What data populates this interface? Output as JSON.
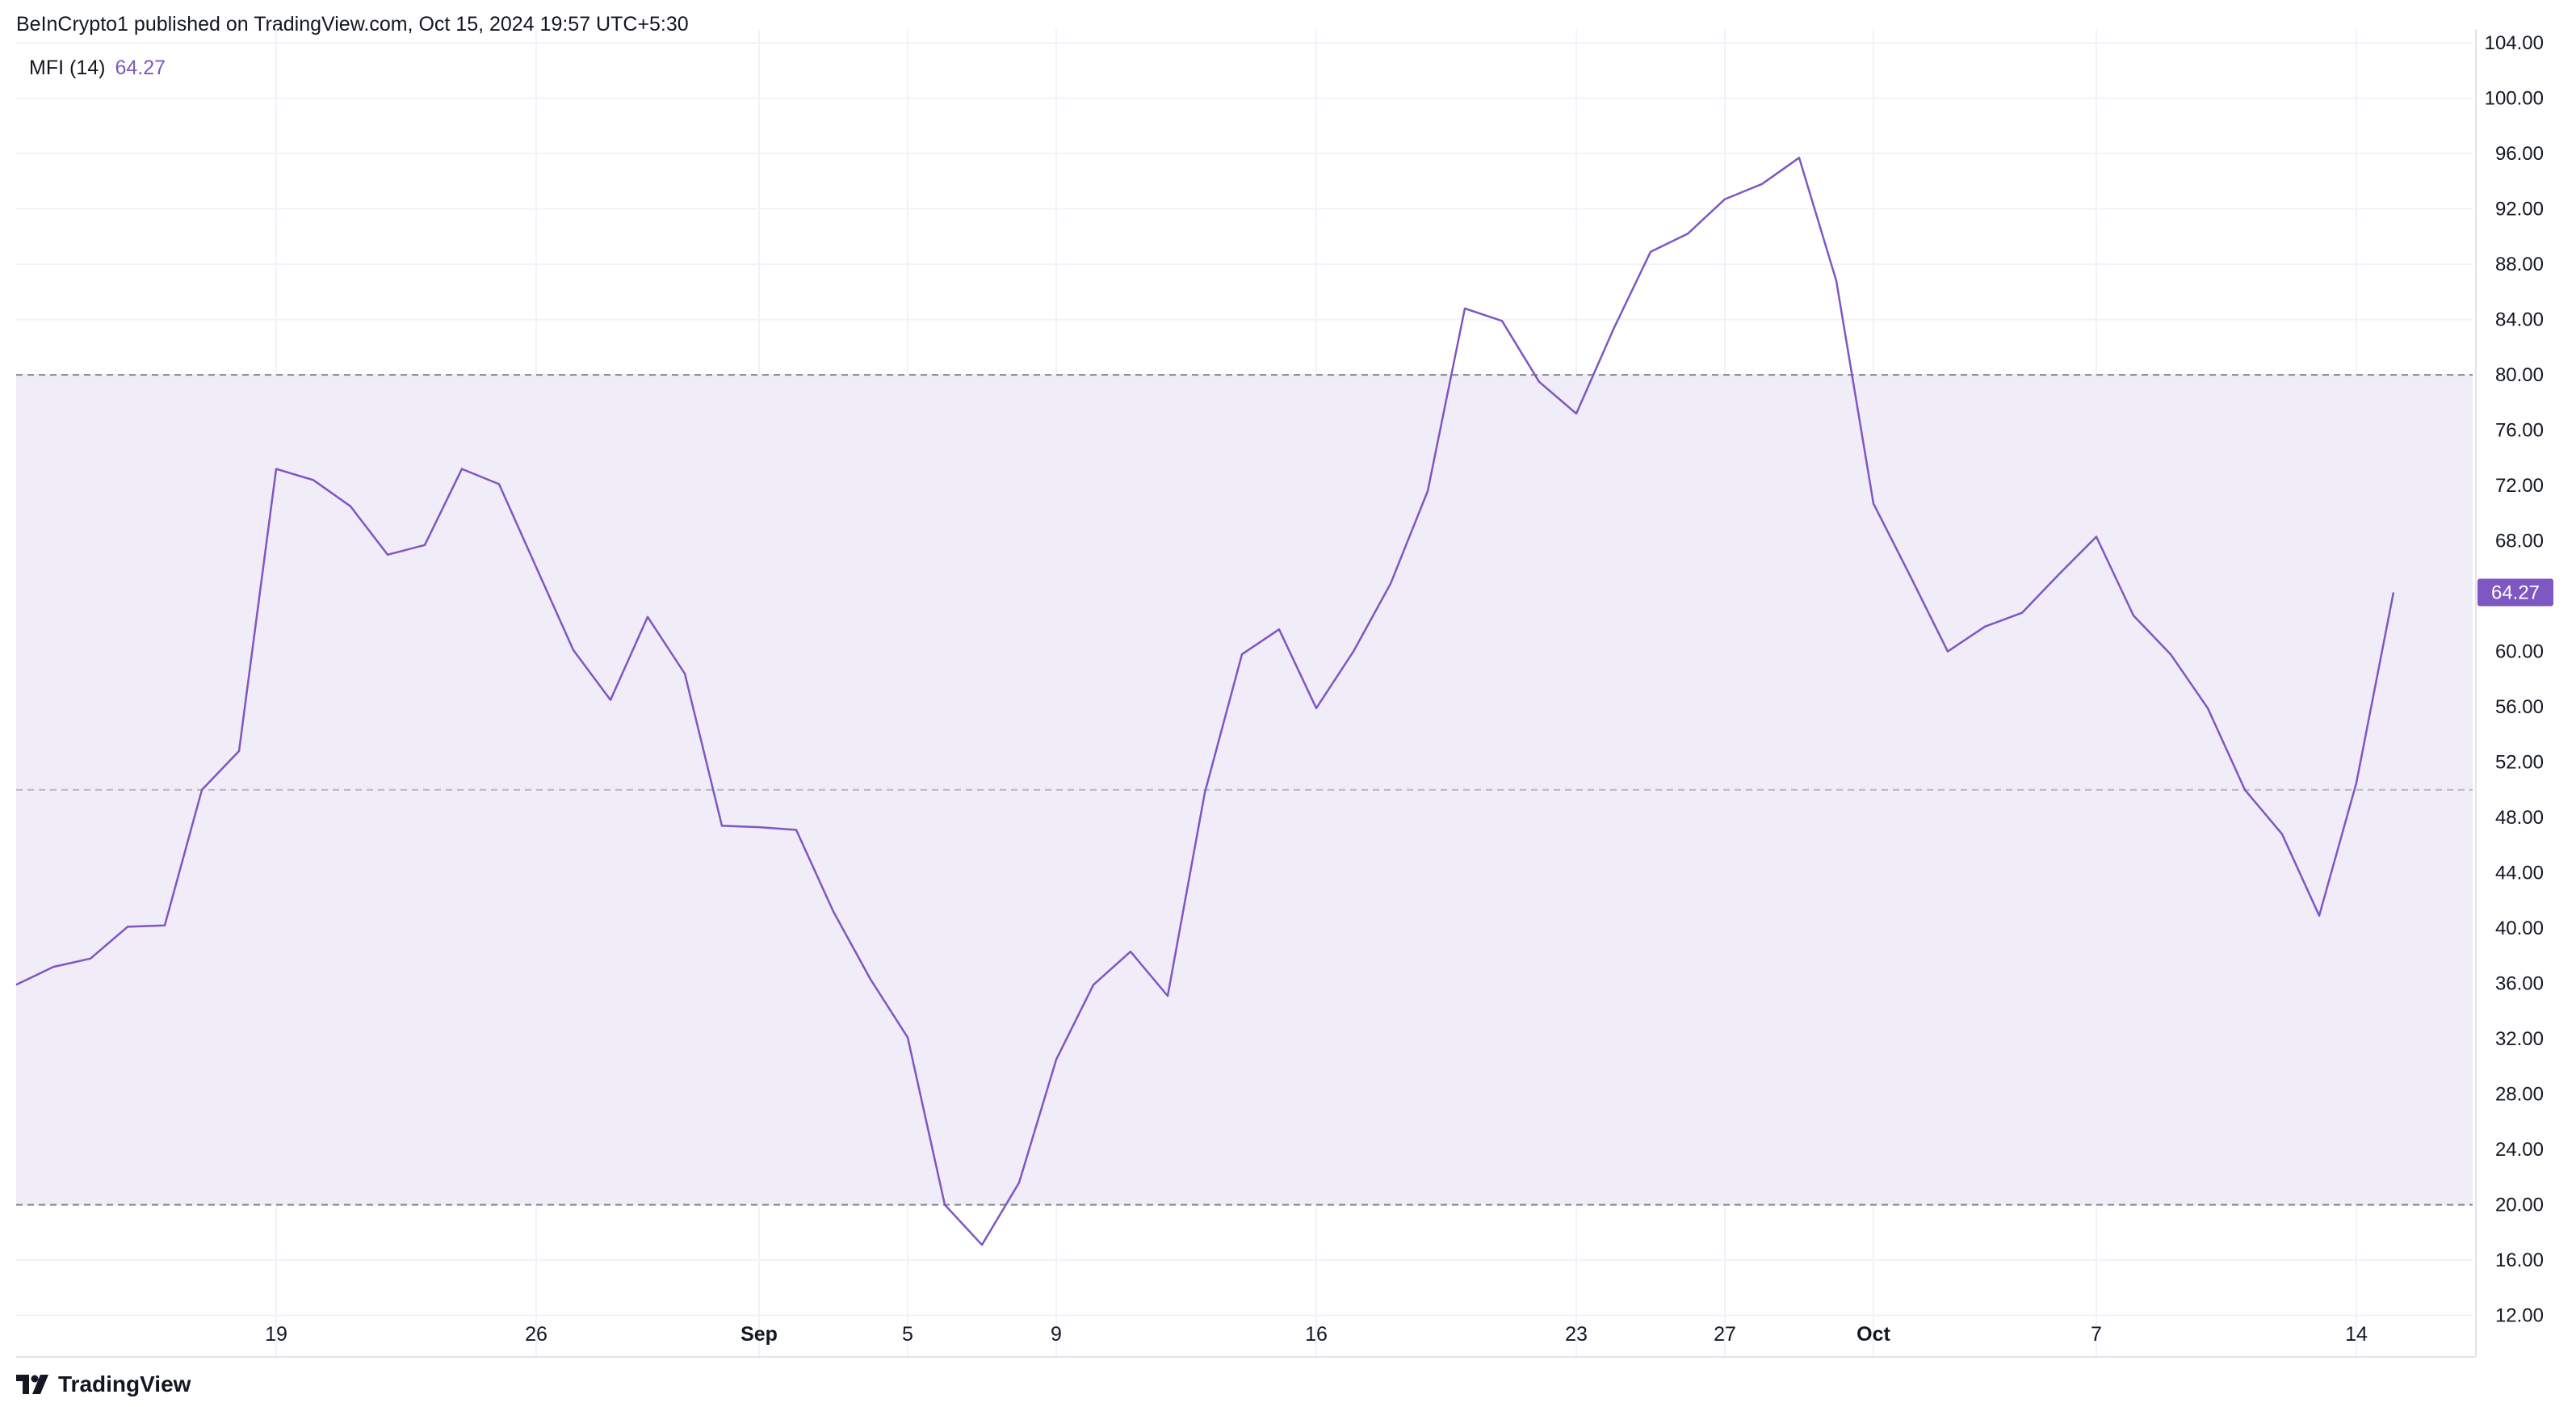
{
  "header": {
    "publisher": "BeInCrypto1 published on TradingView.com, Oct 15, 2024 19:57 UTC+5:30"
  },
  "legend": {
    "name": "MFI (14)",
    "value": "64.27"
  },
  "footer": {
    "brand": "TradingView"
  },
  "colors": {
    "line": "#7e57c2",
    "band_fill": "#f0ecf8",
    "band_lines": "#787b86",
    "grid": "#f0f3fa",
    "price_tag": "#7e57c2"
  },
  "chart_data": {
    "type": "line",
    "title": "",
    "xlabel": "",
    "ylabel": "",
    "ylim": [
      9,
      105
    ],
    "grid": true,
    "y_ticks": [
      "104.00",
      "100.00",
      "96.00",
      "92.00",
      "88.00",
      "84.00",
      "80.00",
      "76.00",
      "72.00",
      "68.00",
      "64.00",
      "60.00",
      "56.00",
      "52.00",
      "48.00",
      "44.00",
      "40.00",
      "36.00",
      "32.00",
      "28.00",
      "24.00",
      "20.00",
      "16.00",
      "12.00"
    ],
    "x_ticks": [
      {
        "label": "19",
        "date": "2024-08-19",
        "major": false
      },
      {
        "label": "26",
        "date": "2024-08-26",
        "major": false
      },
      {
        "label": "Sep",
        "date": "2024-09-01",
        "major": true
      },
      {
        "label": "5",
        "date": "2024-09-05",
        "major": false
      },
      {
        "label": "9",
        "date": "2024-09-09",
        "major": false
      },
      {
        "label": "16",
        "date": "2024-09-16",
        "major": false
      },
      {
        "label": "23",
        "date": "2024-09-23",
        "major": false
      },
      {
        "label": "27",
        "date": "2024-09-27",
        "major": false
      },
      {
        "label": "Oct",
        "date": "2024-10-01",
        "major": true
      },
      {
        "label": "7",
        "date": "2024-10-07",
        "major": false
      },
      {
        "label": "14",
        "date": "2024-10-14",
        "major": false
      }
    ],
    "bands": {
      "upper": 80,
      "middle": 50,
      "lower": 20
    },
    "last_value_label": "64.27",
    "series": [
      {
        "x": [
          "2024-08-12",
          "2024-08-13",
          "2024-08-14",
          "2024-08-15",
          "2024-08-16",
          "2024-08-17",
          "2024-08-18",
          "2024-08-19",
          "2024-08-20",
          "2024-08-21",
          "2024-08-22",
          "2024-08-23",
          "2024-08-24",
          "2024-08-25",
          "2024-08-26",
          "2024-08-27",
          "2024-08-28",
          "2024-08-29",
          "2024-08-30",
          "2024-08-31",
          "2024-09-01",
          "2024-09-02",
          "2024-09-03",
          "2024-09-04",
          "2024-09-05",
          "2024-09-06",
          "2024-09-07",
          "2024-09-08",
          "2024-09-09",
          "2024-09-10",
          "2024-09-11",
          "2024-09-12",
          "2024-09-13",
          "2024-09-14",
          "2024-09-15",
          "2024-09-16",
          "2024-09-17",
          "2024-09-18",
          "2024-09-19",
          "2024-09-20",
          "2024-09-21",
          "2024-09-22",
          "2024-09-23",
          "2024-09-24",
          "2024-09-25",
          "2024-09-26",
          "2024-09-27",
          "2024-09-28",
          "2024-09-29",
          "2024-09-30",
          "2024-10-01",
          "2024-10-02",
          "2024-10-03",
          "2024-10-04",
          "2024-10-05",
          "2024-10-06",
          "2024-10-07",
          "2024-10-08",
          "2024-10-09",
          "2024-10-10",
          "2024-10-11",
          "2024-10-12",
          "2024-10-13",
          "2024-10-14",
          "2024-10-15"
        ],
        "values": [
          35.9,
          37.2,
          37.8,
          40.1,
          40.2,
          50.0,
          52.8,
          73.2,
          72.4,
          70.5,
          67.0,
          67.7,
          73.2,
          72.1,
          66.1,
          60.1,
          56.5,
          62.5,
          58.4,
          47.4,
          47.3,
          47.1,
          41.2,
          36.3,
          32.1,
          20.0,
          17.1,
          21.6,
          30.5,
          35.9,
          38.3,
          35.1,
          49.8,
          59.8,
          61.6,
          55.9,
          60.0,
          64.9,
          71.6,
          84.8,
          83.9,
          79.5,
          77.2,
          83.3,
          88.9,
          90.2,
          92.7,
          93.8,
          95.7,
          86.8,
          70.7,
          65.4,
          60.0,
          61.8,
          62.8,
          65.6,
          68.3,
          62.6,
          59.8,
          55.9,
          50.0,
          46.8,
          40.9,
          50.5,
          64.27
        ]
      }
    ]
  }
}
